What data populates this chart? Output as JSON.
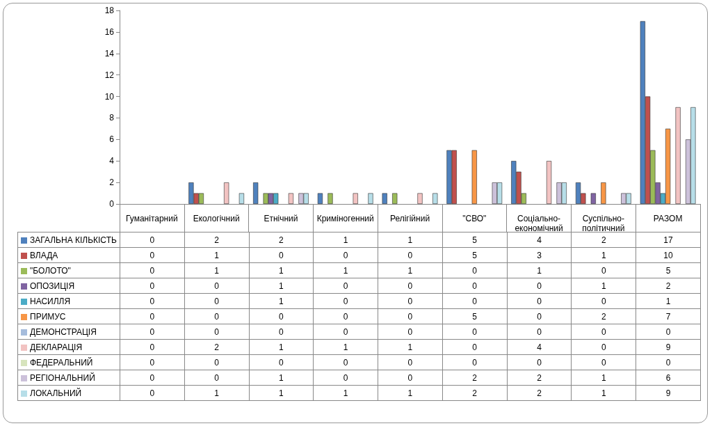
{
  "chart_data": {
    "type": "bar",
    "categories": [
      "Гуманітарний",
      "Екологічний",
      "Етнічний",
      "Криміногенний",
      "Релігійний",
      "\"СВО\"",
      "Соціально-економічний",
      "Суспільно-політичний",
      "РАЗОМ"
    ],
    "ylim": [
      0,
      18
    ],
    "yticks": [
      0,
      2,
      4,
      6,
      8,
      10,
      12,
      14,
      16,
      18
    ],
    "grid": false,
    "legend": "bottom left",
    "data_labels": true,
    "series": [
      {
        "name": "ЗАГАЛЬНА КІЛЬКІСТЬ",
        "color": "#4f81bd",
        "values": [
          0,
          2,
          2,
          1,
          1,
          5,
          4,
          2,
          17
        ]
      },
      {
        "name": "ВЛАДА",
        "color": "#c0504d",
        "values": [
          0,
          1,
          0,
          0,
          0,
          5,
          3,
          1,
          10
        ]
      },
      {
        "name": "\"БОЛОТО\"",
        "color": "#9bbb59",
        "values": [
          0,
          1,
          1,
          1,
          1,
          0,
          1,
          0,
          5
        ]
      },
      {
        "name": "ОПОЗИЦІЯ",
        "color": "#8064a2",
        "values": [
          0,
          0,
          1,
          0,
          0,
          0,
          0,
          1,
          2
        ]
      },
      {
        "name": "НАСИЛЛЯ",
        "color": "#4bacc6",
        "values": [
          0,
          0,
          1,
          0,
          0,
          0,
          0,
          0,
          1
        ]
      },
      {
        "name": "ПРИМУС",
        "color": "#f79646",
        "values": [
          0,
          0,
          0,
          0,
          0,
          5,
          0,
          2,
          7
        ]
      },
      {
        "name": "ДЕМОНСТРАЦІЯ",
        "color": "#a5bcdc",
        "values": [
          0,
          0,
          0,
          0,
          0,
          0,
          0,
          0,
          0
        ]
      },
      {
        "name": "ДЕКЛАРАЦІЯ",
        "color": "#f2c3c2",
        "values": [
          0,
          2,
          1,
          1,
          1,
          0,
          4,
          0,
          9
        ]
      },
      {
        "name": "ФЕДЕРАЛЬНИЙ",
        "color": "#d7e4bd",
        "values": [
          0,
          0,
          0,
          0,
          0,
          0,
          0,
          0,
          0
        ]
      },
      {
        "name": "РЕГІОНАЛЬНИЙ",
        "color": "#ccc1da",
        "values": [
          0,
          0,
          1,
          0,
          0,
          2,
          2,
          1,
          6
        ]
      },
      {
        "name": "ЛОКАЛЬНИЙ",
        "color": "#b7dee8",
        "values": [
          0,
          1,
          1,
          1,
          1,
          2,
          2,
          1,
          9
        ]
      }
    ]
  }
}
